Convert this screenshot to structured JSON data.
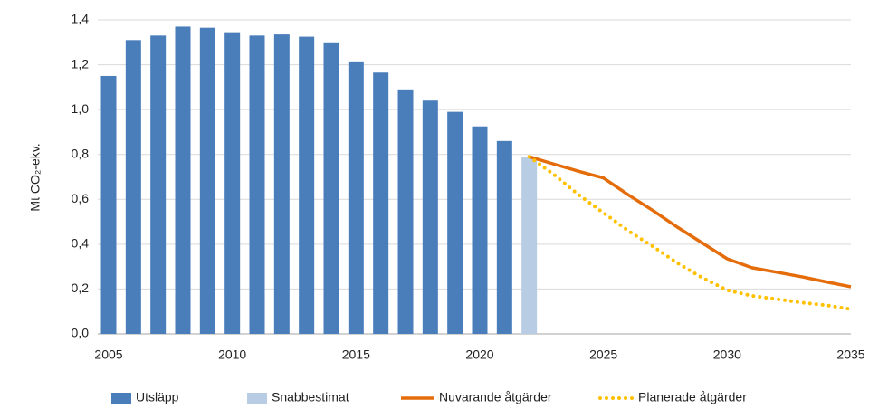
{
  "chart_data": {
    "type": "combo",
    "y_label": "Mt CO₂-ekv.",
    "categories": [
      "2005",
      null,
      null,
      null,
      null,
      "2010",
      null,
      null,
      null,
      null,
      "2015",
      null,
      null,
      null,
      null,
      "2020",
      null,
      null,
      null,
      null,
      "2025",
      null,
      null,
      null,
      null,
      "2030",
      null,
      null,
      null,
      null,
      "2035"
    ],
    "series": [
      {
        "name": "Utsläpp",
        "type": "bar",
        "color": "#4a7ebb",
        "values": [
          1.15,
          1.31,
          1.33,
          1.37,
          1.365,
          1.345,
          1.33,
          1.335,
          1.325,
          1.3,
          1.215,
          1.165,
          1.09,
          1.04,
          0.99,
          0.925,
          0.86,
          null,
          null,
          null,
          null,
          null,
          null,
          null,
          null,
          null,
          null,
          null,
          null,
          null,
          null
        ]
      },
      {
        "name": "Snabbestimat",
        "type": "bar",
        "color": "#b8cce4",
        "values": [
          null,
          null,
          null,
          null,
          null,
          null,
          null,
          null,
          null,
          null,
          null,
          null,
          null,
          null,
          null,
          null,
          null,
          0.79,
          null,
          null,
          null,
          null,
          null,
          null,
          null,
          null,
          null,
          null,
          null,
          null,
          null
        ]
      },
      {
        "name": "Nuvarande åtgärder",
        "type": "line",
        "color": "#e46c0a",
        "style": "solid",
        "values": [
          null,
          null,
          null,
          null,
          null,
          null,
          null,
          null,
          null,
          null,
          null,
          null,
          null,
          null,
          null,
          null,
          null,
          0.79,
          0.757,
          0.725,
          0.695,
          0.62,
          0.55,
          0.475,
          0.405,
          0.335,
          0.295,
          0.275,
          0.255,
          0.232,
          0.21
        ]
      },
      {
        "name": "Planerade åtgärder",
        "type": "line",
        "color": "#ffc000",
        "style": "dotted",
        "values": [
          null,
          null,
          null,
          null,
          null,
          null,
          null,
          null,
          null,
          null,
          null,
          null,
          null,
          null,
          null,
          null,
          null,
          0.79,
          0.71,
          0.62,
          0.54,
          0.46,
          0.39,
          0.315,
          0.25,
          0.195,
          0.17,
          0.155,
          0.14,
          0.128,
          0.11
        ]
      }
    ],
    "ylim": [
      0,
      1.4
    ],
    "yticks": [
      {
        "value": 0,
        "label": "0,0"
      },
      {
        "value": 0.2,
        "label": "0,2"
      },
      {
        "value": 0.4,
        "label": "0,4"
      },
      {
        "value": 0.6,
        "label": "0,6"
      },
      {
        "value": 0.8,
        "label": "0,8"
      },
      {
        "value": 1.0,
        "label": "1,0"
      },
      {
        "value": 1.2,
        "label": "1,2"
      },
      {
        "value": 1.4,
        "label": "1,4"
      }
    ],
    "grid": true,
    "legend": "bottom"
  }
}
